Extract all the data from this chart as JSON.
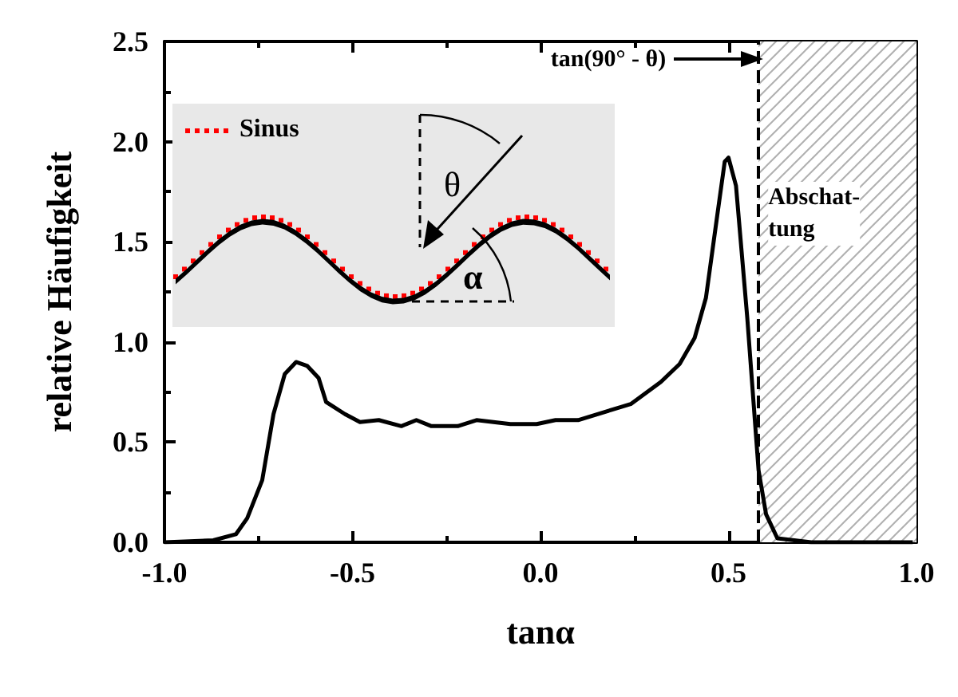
{
  "chart_data": {
    "type": "line",
    "xlabel": "tanα",
    "ylabel": "relative Häufigkeit",
    "x": [
      -1.0,
      -0.87,
      -0.81,
      -0.78,
      -0.74,
      -0.71,
      -0.68,
      -0.65,
      -0.62,
      -0.59,
      -0.57,
      -0.52,
      -0.48,
      -0.43,
      -0.37,
      -0.33,
      -0.29,
      -0.22,
      -0.17,
      -0.08,
      -0.01,
      0.04,
      0.1,
      0.24,
      0.32,
      0.37,
      0.41,
      0.44,
      0.47,
      0.49,
      0.5,
      0.52,
      0.55,
      0.58,
      0.6,
      0.63,
      0.72,
      0.99
    ],
    "series": [
      {
        "color": "#000000",
        "values": [
          0,
          0.01,
          0.04,
          0.12,
          0.31,
          0.64,
          0.84,
          0.9,
          0.88,
          0.82,
          0.7,
          0.64,
          0.6,
          0.61,
          0.58,
          0.61,
          0.58,
          0.58,
          0.61,
          0.59,
          0.59,
          0.61,
          0.61,
          0.69,
          0.8,
          0.89,
          1.02,
          1.22,
          1.63,
          1.9,
          1.92,
          1.78,
          1.12,
          0.36,
          0.14,
          0.02,
          0,
          0
        ]
      }
    ],
    "xlim": [
      -1.0,
      1.0
    ],
    "xticks": [
      {
        "value": -1,
        "label": "-1.0"
      },
      {
        "value": -0.5,
        "label": "-0.5"
      },
      {
        "value": 0,
        "label": "0.0"
      },
      {
        "value": 0.5,
        "label": "0.5"
      },
      {
        "value": 1,
        "label": "1.0"
      }
    ],
    "ylim": [
      0,
      2.5
    ],
    "yticks": [
      {
        "value": 0,
        "label": "0.0"
      },
      {
        "value": 0.5,
        "label": "0.5"
      },
      {
        "value": 1,
        "label": "1.0"
      },
      {
        "value": 1.5,
        "label": "1.5"
      },
      {
        "value": 2,
        "label": "2.0"
      },
      {
        "value": 2.5,
        "label": "2.5"
      }
    ],
    "ref_lines": [
      {
        "axis": "x",
        "value": 0.58,
        "label": "tan(90° - θ)",
        "color": "#000000",
        "line_style": "dashed"
      }
    ],
    "bands": [
      {
        "axis": "x",
        "from": 0.58,
        "to": 1.0,
        "label": "Abschat-\ntung",
        "color": "#b0b0b0"
      }
    ],
    "annotations": [
      "Sinus",
      "θ",
      "α"
    ],
    "grid": false,
    "marker": "none",
    "line_style": "solid"
  }
}
